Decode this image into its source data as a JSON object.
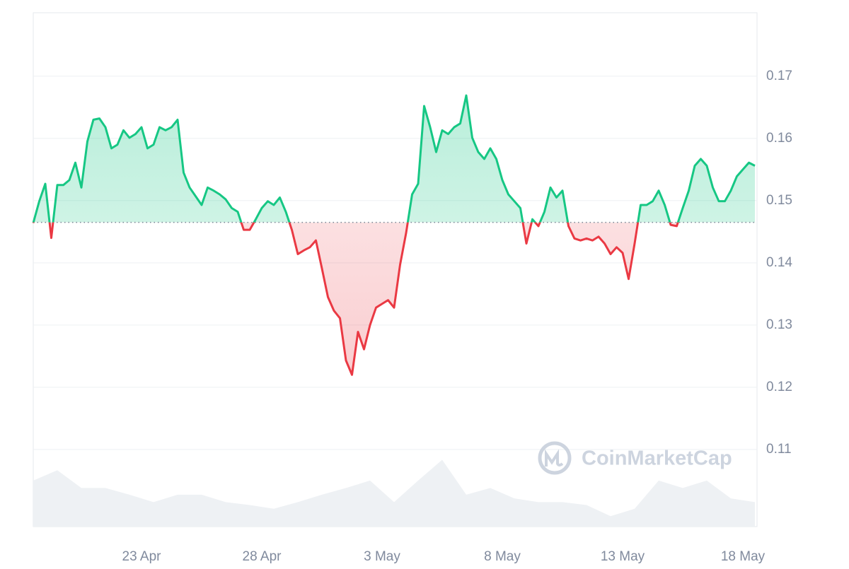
{
  "chart_data": {
    "type": "line",
    "categories": [
      null,
      null,
      null,
      null,
      null,
      null,
      null,
      null,
      null,
      null,
      null,
      null,
      null,
      null,
      null,
      null,
      null,
      null,
      "23 Apr",
      null,
      null,
      null,
      null,
      null,
      null,
      null,
      null,
      null,
      null,
      null,
      null,
      null,
      null,
      null,
      null,
      null,
      null,
      null,
      "28 Apr",
      null,
      null,
      null,
      null,
      null,
      null,
      null,
      null,
      null,
      null,
      null,
      null,
      null,
      null,
      null,
      null,
      null,
      null,
      null,
      "3 May",
      null,
      null,
      null,
      null,
      null,
      null,
      null,
      null,
      null,
      null,
      null,
      null,
      null,
      null,
      null,
      null,
      null,
      null,
      null,
      "8 May",
      null,
      null,
      null,
      null,
      null,
      null,
      null,
      null,
      null,
      null,
      null,
      null,
      null,
      null,
      null,
      null,
      null,
      null,
      null,
      "13 May",
      null,
      null,
      null,
      null,
      null,
      null,
      null,
      null,
      null,
      null,
      null,
      null,
      null,
      null,
      null,
      null,
      null,
      null,
      null,
      "18 May",
      null,
      null
    ],
    "values": [
      0.1464,
      0.1499,
      0.1527,
      0.144,
      0.1525,
      0.1525,
      0.1533,
      0.1561,
      0.1521,
      0.1595,
      0.163,
      0.1632,
      0.1618,
      0.1584,
      0.159,
      0.1613,
      0.1601,
      0.1607,
      0.1618,
      0.1584,
      0.159,
      0.1618,
      0.1613,
      0.1618,
      0.163,
      0.1545,
      0.1521,
      0.1507,
      0.1493,
      0.1521,
      0.1516,
      0.151,
      0.1502,
      0.1488,
      0.1482,
      0.1453,
      0.1453,
      0.147,
      0.1488,
      0.1499,
      0.1493,
      0.1505,
      0.1482,
      0.1453,
      0.1414,
      0.142,
      0.1425,
      0.1436,
      0.1391,
      0.1345,
      0.1323,
      0.1311,
      0.1243,
      0.122,
      0.1289,
      0.1261,
      0.13,
      0.1328,
      0.1334,
      0.134,
      0.1328,
      0.1397,
      0.1448,
      0.151,
      0.1527,
      0.1652,
      0.1618,
      0.1578,
      0.1613,
      0.1607,
      0.1618,
      0.1624,
      0.1669,
      0.1601,
      0.1578,
      0.1567,
      0.1584,
      0.1567,
      0.1533,
      0.151,
      0.1499,
      0.1488,
      0.1431,
      0.147,
      0.1459,
      0.1482,
      0.1521,
      0.1505,
      0.1516,
      0.1459,
      0.1439,
      0.1436,
      0.1439,
      0.1436,
      0.1442,
      0.1431,
      0.1414,
      0.1425,
      0.1416,
      0.1374,
      0.1431,
      0.1493,
      0.1493,
      0.1499,
      0.1516,
      0.1493,
      0.1461,
      0.1459,
      0.1488,
      0.1516,
      0.1556,
      0.1567,
      0.1556,
      0.1521,
      0.1499,
      0.1499,
      0.1516,
      0.1539,
      0.155,
      0.1561,
      0.1556
    ],
    "baseline": 0.1465,
    "colors": {
      "up": "#16c784",
      "down": "#ea3943"
    },
    "ylim": [
      0.0976,
      0.1802
    ],
    "yticks": [
      0.11,
      0.12,
      0.13,
      0.14,
      0.15,
      0.16,
      0.17
    ],
    "grid": true,
    "volume": {
      "values": [
        62,
        76,
        52,
        52,
        43,
        33,
        43,
        43,
        33,
        29,
        24,
        33,
        43,
        52,
        62,
        33,
        62,
        90,
        43,
        52,
        38,
        33,
        33,
        29,
        14,
        24,
        62,
        52,
        62,
        38,
        33
      ],
      "ylim": [
        0,
        100
      ],
      "color": "#eef1f4"
    },
    "watermark": "CoinMarketCap"
  }
}
